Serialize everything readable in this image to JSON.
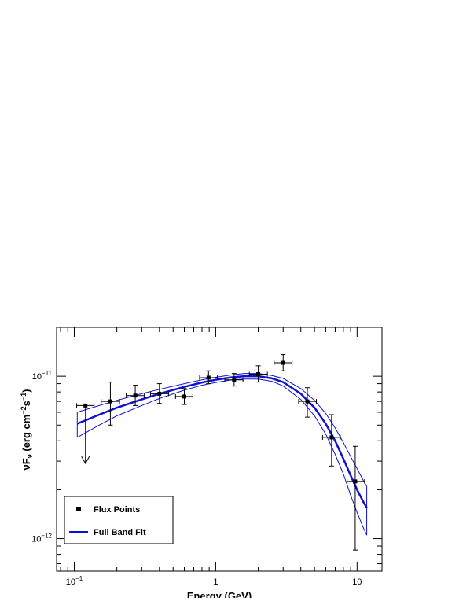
{
  "chart_data": {
    "type": "scatter",
    "title": "",
    "xlabel": "Energy (GeV)",
    "ylabel": {
      "prefix": "νF",
      "sub": "ν",
      "open": " (erg cm",
      "sup1": "−2",
      "mid": "s",
      "sup2": "−1",
      "close": ")"
    },
    "x_scale": "log",
    "y_scale": "log",
    "xlim": [
      0.075,
      15
    ],
    "ylim": [
      6.3e-13,
      2e-11
    ],
    "x_ticks": [
      {
        "value": 0.1,
        "base": "10",
        "exp": "−1"
      },
      {
        "value": 1,
        "base": "1",
        "exp": ""
      },
      {
        "value": 10,
        "base": "10",
        "exp": ""
      }
    ],
    "y_ticks": [
      {
        "value": 1e-11,
        "base": "10",
        "exp": "−11"
      },
      {
        "value": 1e-12,
        "base": "10",
        "exp": "−12"
      }
    ],
    "grid": false,
    "legend": {
      "placement": "bottom-left",
      "entries": [
        {
          "label": "Flux Points",
          "marker": "square",
          "color": "#000000"
        },
        {
          "label": "Full Band Fit",
          "marker": "line",
          "color": "#1010d0"
        }
      ]
    },
    "series": [
      {
        "name": "Flux Points",
        "color": "#000000",
        "points": [
          {
            "x": 0.12,
            "y": 6.6e-12,
            "xerr": [
              0.104,
              0.138
            ],
            "upper_limit": true,
            "ul_to": 2.9e-12
          },
          {
            "x": 0.18,
            "y": 7e-12,
            "xerr": [
              0.155,
              0.209
            ],
            "yerr": [
              5e-12,
              9.2e-12
            ]
          },
          {
            "x": 0.27,
            "y": 7.6e-12,
            "xerr": [
              0.233,
              0.313
            ],
            "yerr": [
              6.6e-12,
              8.8e-12
            ]
          },
          {
            "x": 0.4,
            "y": 7.8e-12,
            "xerr": [
              0.346,
              0.464
            ],
            "yerr": [
              6.8e-12,
              9e-12
            ]
          },
          {
            "x": 0.6,
            "y": 7.5e-12,
            "xerr": [
              0.52,
              0.69
            ],
            "yerr": [
              6.7e-12,
              8.4e-12
            ]
          },
          {
            "x": 0.89,
            "y": 9.8e-12,
            "xerr": [
              0.77,
              1.03
            ],
            "yerr": [
              9e-12,
              1.08e-11
            ]
          },
          {
            "x": 1.35,
            "y": 9.5e-12,
            "xerr": [
              1.16,
              1.56
            ],
            "yerr": [
              8.7e-12,
              1.04e-11
            ]
          },
          {
            "x": 2.0,
            "y": 1.03e-11,
            "xerr": [
              1.73,
              2.32
            ],
            "yerr": [
              9.2e-12,
              1.16e-11
            ]
          },
          {
            "x": 3.0,
            "y": 1.21e-11,
            "xerr": [
              2.59,
              3.47
            ],
            "yerr": [
              1.08e-11,
              1.36e-11
            ]
          },
          {
            "x": 4.45,
            "y": 7e-12,
            "xerr": [
              3.86,
              5.15
            ],
            "yerr": [
              5.6e-12,
              8.5e-12
            ]
          },
          {
            "x": 6.6,
            "y": 4.2e-12,
            "xerr": [
              5.7,
              7.6
            ],
            "yerr": [
              2.8e-12,
              5.8e-12
            ]
          },
          {
            "x": 9.7,
            "y": 2.25e-12,
            "xerr": [
              8.5,
              11.3
            ],
            "yerr": [
              8.5e-13,
              3.7e-12
            ]
          }
        ]
      },
      {
        "name": "Full Band Fit",
        "color": "#1010d0",
        "x": [
          0.105,
          0.15,
          0.2,
          0.3,
          0.4,
          0.6,
          0.8,
          1.0,
          1.3,
          1.6,
          2.0,
          2.5,
          3.0,
          4.0,
          5.0,
          6.0,
          7.0,
          8.0,
          9.0,
          10.0,
          11.0,
          11.7
        ],
        "y": [
          5.1e-12,
          5.8e-12,
          6.4e-12,
          7.2e-12,
          7.8e-12,
          8.6e-12,
          9.15e-12,
          9.5e-12,
          9.85e-12,
          1e-11,
          1e-11,
          9.7e-12,
          9.2e-12,
          7.8e-12,
          6.4e-12,
          5.1e-12,
          4e-12,
          3.1e-12,
          2.45e-12,
          2e-12,
          1.7e-12,
          1.55e-12
        ],
        "band_upper": [
          6e-12,
          6.6e-12,
          7.1e-12,
          7.8e-12,
          8.3e-12,
          9e-12,
          9.5e-12,
          9.85e-12,
          1.02e-11,
          1.04e-11,
          1.04e-11,
          1.01e-11,
          9.7e-12,
          8.4e-12,
          7.1e-12,
          5.9e-12,
          4.8e-12,
          3.9e-12,
          3.2e-12,
          2.7e-12,
          2.3e-12,
          2.1e-12
        ],
        "band_lower": [
          4.2e-12,
          5e-12,
          5.7e-12,
          6.6e-12,
          7.3e-12,
          8.2e-12,
          8.8e-12,
          9.15e-12,
          9.5e-12,
          9.6e-12,
          9.6e-12,
          9.3e-12,
          8.7e-12,
          7.2e-12,
          5.7e-12,
          4.4e-12,
          3.3e-12,
          2.5e-12,
          1.85e-12,
          1.45e-12,
          1.18e-12,
          1.05e-12
        ]
      }
    ]
  }
}
